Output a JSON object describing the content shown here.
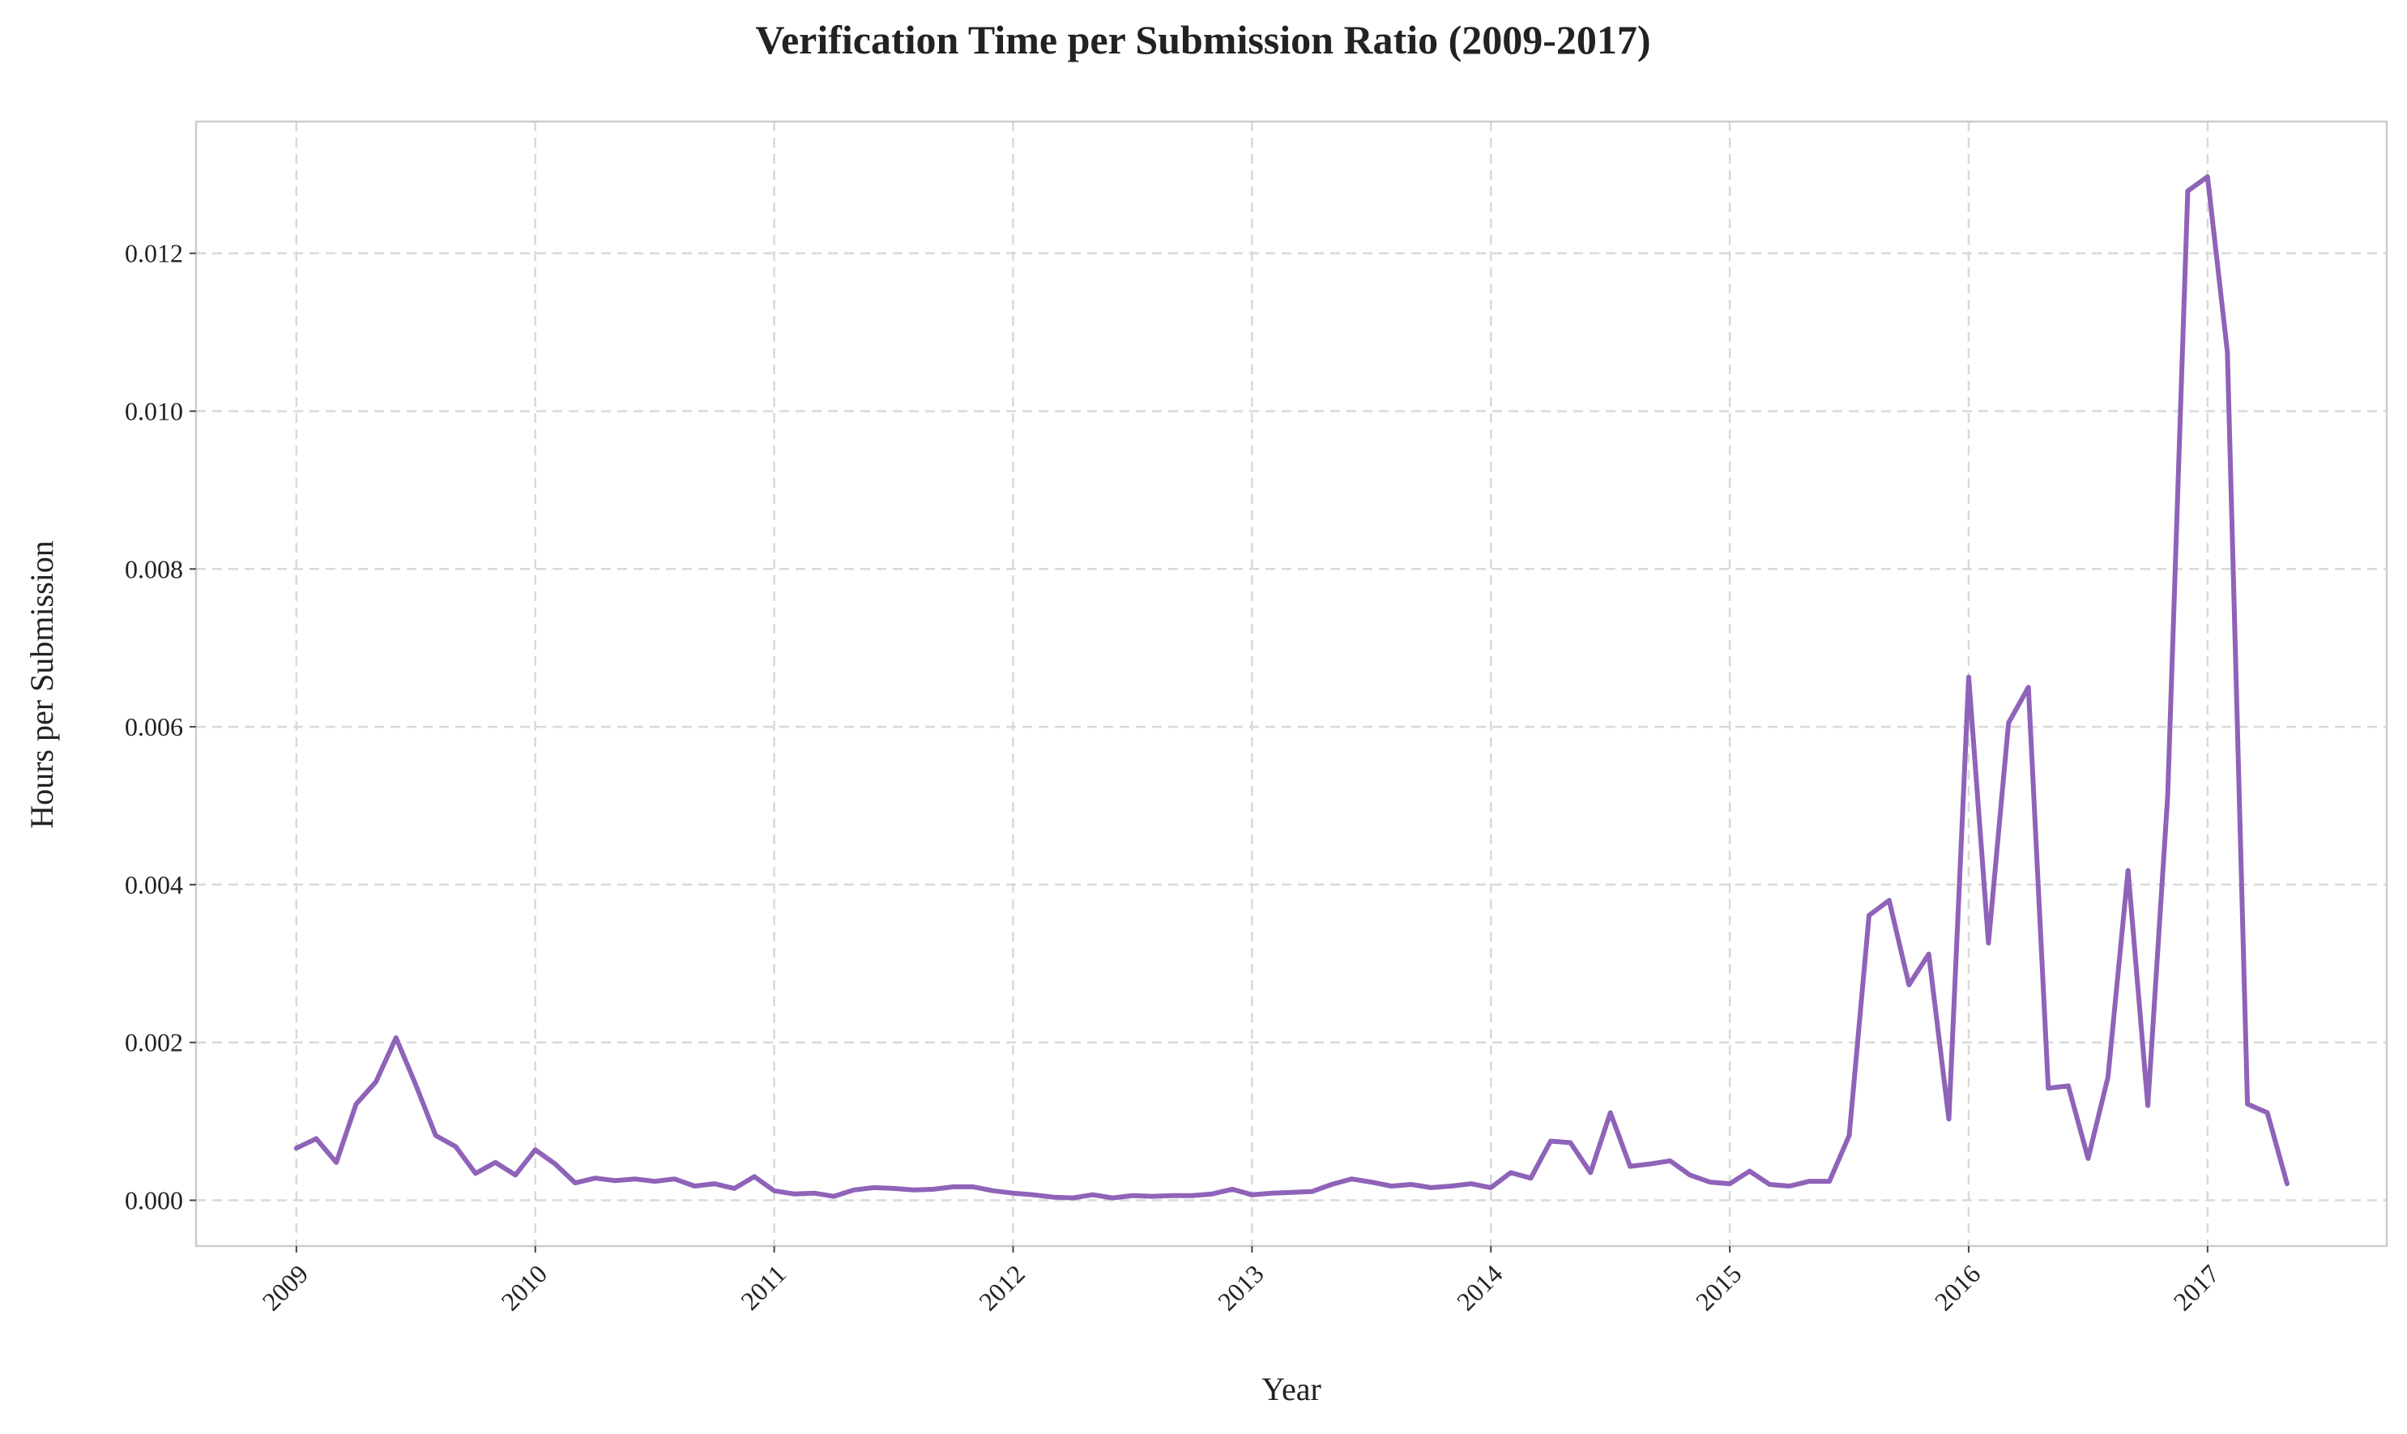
{
  "chart_data": {
    "type": "line",
    "title": "Verification Time per Submission Ratio (2009-2017)",
    "xlabel": "Year",
    "ylabel": "Hours per Submission",
    "xlim": [
      2008.58,
      2017.75
    ],
    "ylim": [
      -0.00058,
      0.01367
    ],
    "x_ticks": [
      2009,
      2010,
      2011,
      2012,
      2013,
      2014,
      2015,
      2016,
      2017
    ],
    "x_tick_labels": [
      "2009",
      "2010",
      "2011",
      "2012",
      "2013",
      "2014",
      "2015",
      "2016",
      "2017"
    ],
    "y_ticks": [
      0.0,
      0.002,
      0.004,
      0.006,
      0.008,
      0.01,
      0.012
    ],
    "y_tick_labels": [
      "0.000",
      "0.002",
      "0.004",
      "0.006",
      "0.008",
      "0.010",
      "0.012"
    ],
    "grid": true,
    "legend": "none",
    "series": [
      {
        "color": "#8e63b8",
        "points": [
          [
            2009.0,
            0.00066
          ],
          [
            2009.083,
            0.00078
          ],
          [
            2009.167,
            0.00048
          ],
          [
            2009.25,
            0.00122
          ],
          [
            2009.333,
            0.0015
          ],
          [
            2009.417,
            0.00206
          ],
          [
            2009.5,
            0.00146
          ],
          [
            2009.583,
            0.00082
          ],
          [
            2009.667,
            0.00068
          ],
          [
            2009.75,
            0.00034
          ],
          [
            2009.833,
            0.00048
          ],
          [
            2009.917,
            0.00032
          ],
          [
            2010.0,
            0.00064
          ],
          [
            2010.083,
            0.00046
          ],
          [
            2010.167,
            0.00022
          ],
          [
            2010.25,
            0.00028
          ],
          [
            2010.333,
            0.00025
          ],
          [
            2010.417,
            0.00027
          ],
          [
            2010.5,
            0.00024
          ],
          [
            2010.583,
            0.00027
          ],
          [
            2010.667,
            0.00018
          ],
          [
            2010.75,
            0.00021
          ],
          [
            2010.833,
            0.00015
          ],
          [
            2010.917,
            0.0003
          ],
          [
            2011.0,
            0.00012
          ],
          [
            2011.083,
            8e-05
          ],
          [
            2011.167,
            9e-05
          ],
          [
            2011.25,
            5e-05
          ],
          [
            2011.333,
            0.00013
          ],
          [
            2011.417,
            0.00016
          ],
          [
            2011.5,
            0.00015
          ],
          [
            2011.583,
            0.00013
          ],
          [
            2011.667,
            0.00014
          ],
          [
            2011.75,
            0.00017
          ],
          [
            2011.833,
            0.00017
          ],
          [
            2011.917,
            0.00012
          ],
          [
            2012.0,
            9e-05
          ],
          [
            2012.083,
            7e-05
          ],
          [
            2012.167,
            4e-05
          ],
          [
            2012.25,
            3e-05
          ],
          [
            2012.333,
            7e-05
          ],
          [
            2012.417,
            3e-05
          ],
          [
            2012.5,
            6e-05
          ],
          [
            2012.583,
            5e-05
          ],
          [
            2012.667,
            6e-05
          ],
          [
            2012.75,
            6e-05
          ],
          [
            2012.833,
            8e-05
          ],
          [
            2012.917,
            0.00014
          ],
          [
            2013.0,
            7e-05
          ],
          [
            2013.083,
            9e-05
          ],
          [
            2013.167,
            0.0001
          ],
          [
            2013.25,
            0.00011
          ],
          [
            2013.333,
            0.0002
          ],
          [
            2013.417,
            0.00027
          ],
          [
            2013.5,
            0.00023
          ],
          [
            2013.583,
            0.00018
          ],
          [
            2013.667,
            0.0002
          ],
          [
            2013.75,
            0.00016
          ],
          [
            2013.833,
            0.00018
          ],
          [
            2013.917,
            0.00021
          ],
          [
            2014.0,
            0.00016
          ],
          [
            2014.083,
            0.00035
          ],
          [
            2014.167,
            0.00028
          ],
          [
            2014.25,
            0.00075
          ],
          [
            2014.333,
            0.00073
          ],
          [
            2014.417,
            0.00035
          ],
          [
            2014.5,
            0.00111
          ],
          [
            2014.583,
            0.00043
          ],
          [
            2014.667,
            0.00046
          ],
          [
            2014.75,
            0.0005
          ],
          [
            2014.833,
            0.00032
          ],
          [
            2014.917,
            0.00023
          ],
          [
            2015.0,
            0.00021
          ],
          [
            2015.083,
            0.00037
          ],
          [
            2015.167,
            0.0002
          ],
          [
            2015.25,
            0.00018
          ],
          [
            2015.333,
            0.00024
          ],
          [
            2015.417,
            0.00024
          ],
          [
            2015.5,
            0.00082
          ],
          [
            2015.583,
            0.00361
          ],
          [
            2015.667,
            0.0038
          ],
          [
            2015.75,
            0.00273
          ],
          [
            2015.833,
            0.00312
          ],
          [
            2015.917,
            0.00103
          ],
          [
            2016.0,
            0.00663
          ],
          [
            2016.083,
            0.00326
          ],
          [
            2016.167,
            0.00605
          ],
          [
            2016.25,
            0.0065
          ],
          [
            2016.333,
            0.00142
          ],
          [
            2016.417,
            0.00145
          ],
          [
            2016.5,
            0.00053
          ],
          [
            2016.583,
            0.00156
          ],
          [
            2016.667,
            0.00418
          ],
          [
            2016.75,
            0.0012
          ],
          [
            2016.833,
            0.00512
          ],
          [
            2016.917,
            0.01279
          ],
          [
            2017.0,
            0.01297
          ],
          [
            2017.083,
            0.01075
          ],
          [
            2017.167,
            0.00122
          ],
          [
            2017.25,
            0.00111
          ],
          [
            2017.333,
            0.00021
          ]
        ]
      }
    ]
  }
}
